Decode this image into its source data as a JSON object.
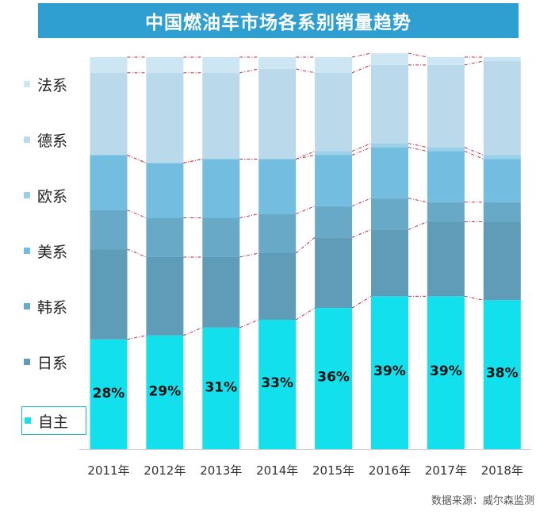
{
  "title": "中国燃油车市场各系别销量趋势",
  "source": "数据来源：威尔森监测",
  "chart_data": {
    "type": "bar",
    "stacked": true,
    "percent": true,
    "categories": [
      "2011年",
      "2012年",
      "2013年",
      "2014年",
      "2015年",
      "2016年",
      "2017年",
      "2018年"
    ],
    "series": [
      {
        "name": "自主",
        "color": "#12e0ec",
        "values": [
          28,
          29,
          31,
          33,
          36,
          39,
          39,
          38
        ],
        "labels": [
          "28%",
          "29%",
          "31%",
          "33%",
          "36%",
          "39%",
          "39%",
          "38%"
        ]
      },
      {
        "name": "日系",
        "color": "#5f9cb7",
        "values": [
          23,
          20,
          18,
          17,
          18,
          17,
          19,
          20
        ]
      },
      {
        "name": "韩系",
        "color": "#68a9c8",
        "values": [
          10,
          10,
          10,
          10,
          8,
          8,
          5,
          5
        ]
      },
      {
        "name": "美系",
        "color": "#73bde0",
        "values": [
          14,
          14,
          15,
          14,
          13,
          13,
          13,
          11
        ]
      },
      {
        "name": "欧系",
        "color": "#9ad0e8",
        "values": [
          0,
          0,
          0,
          0,
          1,
          1,
          1,
          1
        ]
      },
      {
        "name": "德系",
        "color": "#badaeb",
        "values": [
          21,
          23,
          22,
          23,
          20,
          20,
          21,
          24
        ]
      },
      {
        "name": "法系",
        "color": "#cde6f3",
        "values": [
          4,
          4,
          4,
          3,
          4,
          3,
          2,
          1
        ]
      }
    ],
    "legend": [
      "法系",
      "德系",
      "欧系",
      "美系",
      "韩系",
      "日系",
      "自主"
    ],
    "legend_selected": "自主",
    "ylim": [
      0,
      100
    ],
    "connector_color": "#c42b3f",
    "legend_position": "left"
  }
}
